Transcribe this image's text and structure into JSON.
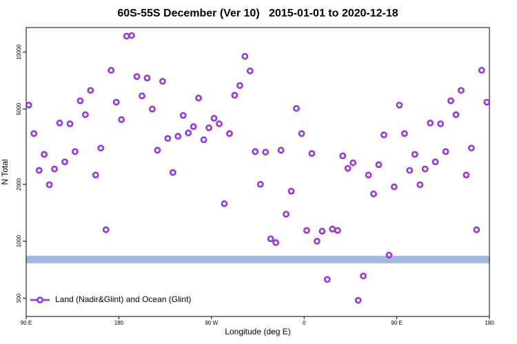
{
  "chart_data": {
    "type": "scatter",
    "title": "60S-55S December (Ver 10)   2015-01-01 to 2020-12-18",
    "x_label": "Longitude (deg E)",
    "y_label": "N Total",
    "log_y": true,
    "legend": "bottom-left",
    "xlim": [
      -270,
      180
    ],
    "xticks": [
      {
        "value": -270,
        "label": "90 E"
      },
      {
        "value": -180,
        "label": "180"
      },
      {
        "value": -90,
        "label": "90 W"
      },
      0,
      {
        "value": 90,
        "label": "90 E"
      },
      180
    ],
    "ylim": [
      400,
      13500
    ],
    "yticks": [
      500,
      1000,
      2000,
      5000,
      10000
    ],
    "band": {
      "y": 800,
      "color": "#a3b8e0"
    },
    "x": [
      -267.5,
      -262.5,
      -257.5,
      -252.5,
      -247.5,
      -242.5,
      -237.5,
      -232.5,
      -227.5,
      -222.5,
      -217.5,
      -212.5,
      -207.5,
      -202.5,
      -197.5,
      -192.5,
      -187.5,
      -182.5,
      -177.5,
      -172.5,
      -167.5,
      -162.5,
      -157.5,
      -152.5,
      -147.5,
      -142.5,
      -137.5,
      -132.5,
      -127.5,
      -122.5,
      -117.5,
      -112.5,
      -107.5,
      -102.5,
      -97.5,
      -92.5,
      -87.5,
      -82.5,
      -77.5,
      -72.5,
      -67.5,
      -62.5,
      -57.5,
      -52.5,
      -47.5,
      -42.5,
      -37.5,
      -32.5,
      -27.5,
      -22.5,
      -17.5,
      -12.5,
      -7.5,
      -2.5,
      2.5,
      7.5,
      12.5,
      17.5,
      22.5,
      27.5,
      32.5,
      37.5,
      42.5,
      47.5,
      52.5,
      57.5,
      62.5,
      67.5,
      72.5,
      77.5,
      82.5,
      87.5,
      92.5,
      97.5,
      102.5,
      107.5,
      112.5,
      117.5,
      122.5,
      127.5,
      132.5,
      137.5,
      142.5,
      147.5,
      152.5,
      157.5,
      162.5,
      167.5,
      172.5,
      177.5
    ],
    "series": [
      {
        "name": "Land (Nadir&Glint) and Ocean (Glint)",
        "color": "#9b30e8",
        "values": [
          5250,
          3710,
          2370,
          2880,
          1990,
          2410,
          4220,
          2630,
          4180,
          2980,
          5530,
          4670,
          6280,
          2240,
          3110,
          1150,
          8020,
          5440,
          4400,
          12150,
          12250,
          7430,
          5870,
          7300,
          5000,
          3030,
          7010,
          3500,
          2310,
          3590,
          4630,
          3740,
          4040,
          5720,
          3440,
          3980,
          4470,
          4180,
          1580,
          3710,
          5920,
          6660,
          9500,
          7960,
          2980,
          2000,
          2960,
          1030,
          983,
          3030,
          1390,
          1840,
          5040,
          3710,
          1140,
          2910,
          1000,
          1130,
          628,
          1160,
          1140,
          2830,
          2430,
          2600,
          487,
          655,
          2240,
          1780,
          2540,
          3650,
          845,
          1940,
          5250,
          3710,
          2370,
          2880,
          1990,
          2410,
          4220,
          2630,
          4180,
          2980,
          5530,
          4670,
          6280,
          2240,
          3110,
          1150,
          8020,
          5440
        ]
      }
    ]
  }
}
